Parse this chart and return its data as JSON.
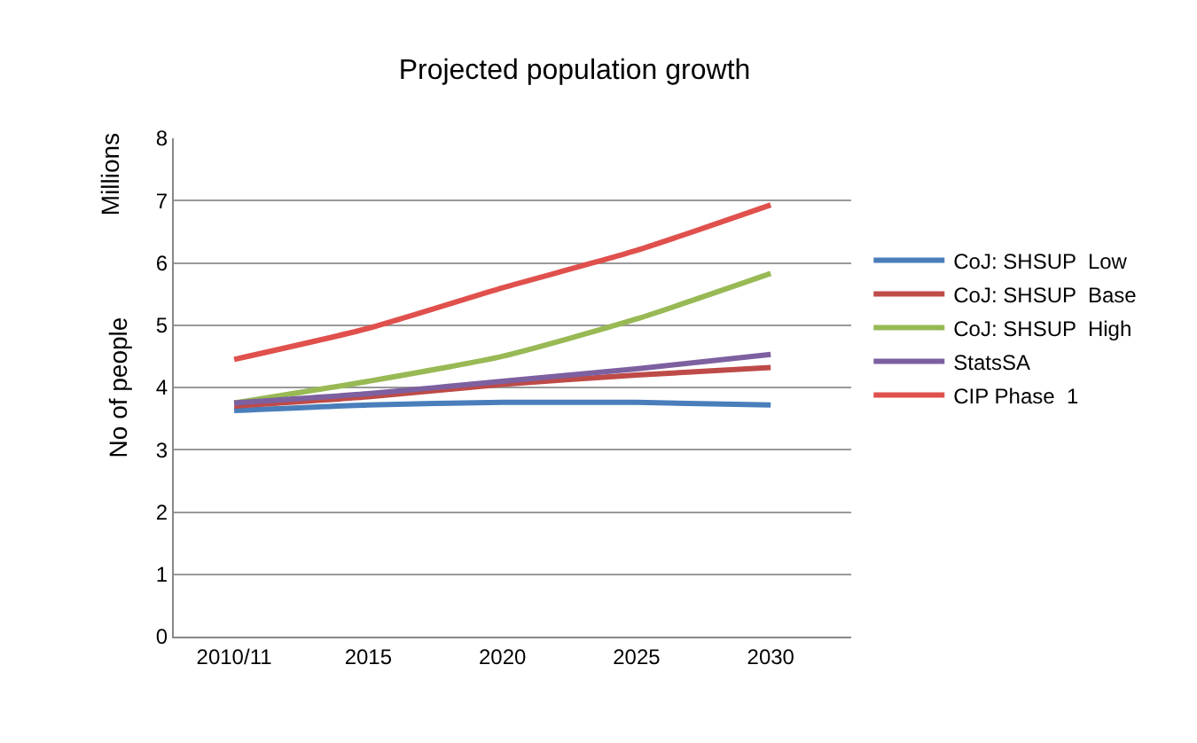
{
  "chart_data": {
    "type": "line",
    "title": "Projected population growth",
    "ylabel": "No of people",
    "annotations": [
      "Millions"
    ],
    "categories": [
      "2010/11",
      "2015",
      "2020",
      "2025",
      "2030"
    ],
    "series": [
      {
        "name": "CoJ: SHSUP  Low",
        "color": "#4a7ebb",
        "values": [
          3.63,
          3.72,
          3.76,
          3.76,
          3.72
        ]
      },
      {
        "name": "CoJ: SHSUP  Base",
        "color": "#be4b48",
        "values": [
          3.7,
          3.85,
          4.05,
          4.2,
          4.32
        ]
      },
      {
        "name": "CoJ: SHSUP  High",
        "color": "#98b954",
        "values": [
          3.75,
          4.1,
          4.5,
          5.1,
          5.83
        ]
      },
      {
        "name": "StatsSA",
        "color": "#7d60a0",
        "values": [
          3.75,
          3.9,
          4.1,
          4.3,
          4.53
        ]
      },
      {
        "name": "CIP Phase  1",
        "color": "#e0504c",
        "values": [
          4.45,
          4.95,
          5.6,
          6.2,
          6.93
        ]
      }
    ],
    "ylim": [
      0,
      8
    ],
    "yticks": [
      0,
      1,
      2,
      3,
      4,
      5,
      6,
      7,
      8
    ],
    "grid": "y",
    "legend": "right",
    "marker": "none",
    "line_style": "solid"
  }
}
